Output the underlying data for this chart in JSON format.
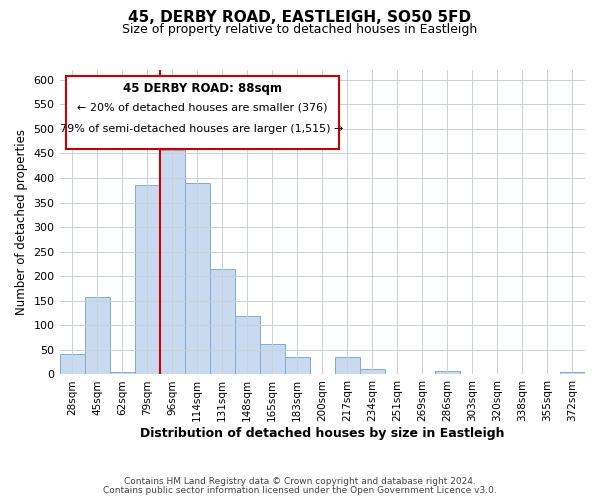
{
  "title": "45, DERBY ROAD, EASTLEIGH, SO50 5FD",
  "subtitle": "Size of property relative to detached houses in Eastleigh",
  "xlabel": "Distribution of detached houses by size in Eastleigh",
  "ylabel": "Number of detached properties",
  "bar_labels": [
    "28sqm",
    "45sqm",
    "62sqm",
    "79sqm",
    "96sqm",
    "114sqm",
    "131sqm",
    "148sqm",
    "165sqm",
    "183sqm",
    "200sqm",
    "217sqm",
    "234sqm",
    "251sqm",
    "269sqm",
    "286sqm",
    "303sqm",
    "320sqm",
    "338sqm",
    "355sqm",
    "372sqm"
  ],
  "bar_values": [
    42,
    158,
    5,
    385,
    458,
    390,
    215,
    120,
    62,
    35,
    0,
    35,
    12,
    0,
    0,
    8,
    0,
    0,
    0,
    0,
    5
  ],
  "bar_color": "#c9d9f0",
  "bar_edge_color": "#7bafd4",
  "property_line_color": "#cc0000",
  "annotation_line1": "45 DERBY ROAD: 88sqm",
  "annotation_line2": "← 20% of detached houses are smaller (376)",
  "annotation_line3": "79% of semi-detached houses are larger (1,515) →",
  "ylim": [
    0,
    620
  ],
  "yticks": [
    0,
    50,
    100,
    150,
    200,
    250,
    300,
    350,
    400,
    450,
    500,
    550,
    600
  ],
  "grid_color": "#c8d0d8",
  "background_color": "#ffffff",
  "footer1": "Contains HM Land Registry data © Crown copyright and database right 2024.",
  "footer2": "Contains public sector information licensed under the Open Government Licence v3.0."
}
